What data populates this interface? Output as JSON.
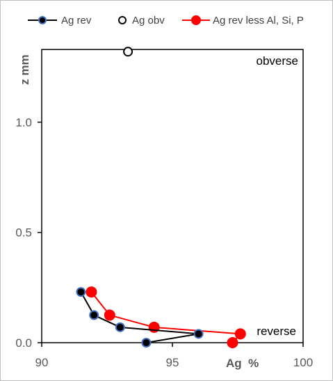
{
  "chart_data": {
    "type": "scatter",
    "xlabel": "Ag  %",
    "ylabel": "z  mm",
    "xlim": [
      90,
      100
    ],
    "ylim": [
      0,
      1.33
    ],
    "xticks": [
      "90",
      "95",
      "100"
    ],
    "yticks": [
      "0.0",
      "0.5",
      "1.0"
    ],
    "grid": false,
    "legend_position": "top",
    "annotations": {
      "top": "obverse",
      "bottom": "reverse"
    },
    "series": [
      {
        "name": "Ag rev",
        "color": "#000000",
        "marker_fill": "#000000",
        "marker_edge": "#4472c4",
        "line": true,
        "points": [
          {
            "x": 94.0,
            "y": 0.0
          },
          {
            "x": 96.0,
            "y": 0.04
          },
          {
            "x": 93.0,
            "y": 0.07
          },
          {
            "x": 92.0,
            "y": 0.125
          },
          {
            "x": 91.5,
            "y": 0.23
          }
        ]
      },
      {
        "name": "Ag obv",
        "color": "#000000",
        "marker_fill": "#ffffff",
        "marker_edge": "#000000",
        "line": false,
        "points": [
          {
            "x": 93.3,
            "y": 1.32
          }
        ]
      },
      {
        "name": "Ag rev less Al, Si, P",
        "color": "#ff0000",
        "marker_fill": "#ff0000",
        "marker_edge": "#ff0000",
        "line": true,
        "points": [
          {
            "x": 97.3,
            "y": 0.0
          },
          {
            "x": 97.6,
            "y": 0.04
          },
          {
            "x": 94.3,
            "y": 0.07
          },
          {
            "x": 92.6,
            "y": 0.125
          },
          {
            "x": 91.9,
            "y": 0.23
          }
        ]
      }
    ]
  }
}
